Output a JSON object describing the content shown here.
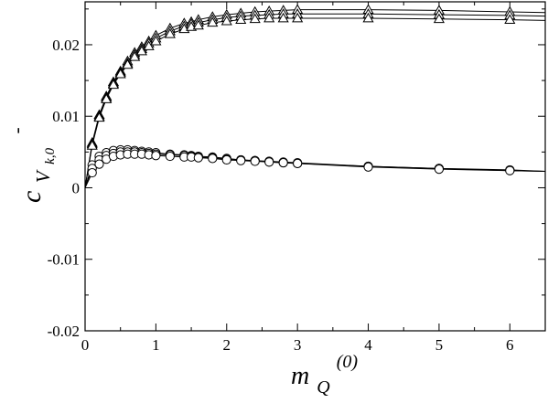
{
  "chart_data": {
    "type": "scatter",
    "title": "",
    "xlabel": {
      "base": "m",
      "sub": "Q",
      "sup": "(0)"
    },
    "ylabel": {
      "base": "c",
      "sub": "V",
      "subsub": "k,0",
      "sup": "-"
    },
    "xlim": [
      0,
      6.5
    ],
    "ylim": [
      -0.02,
      0.026
    ],
    "x_ticks": [
      0,
      1,
      2,
      3,
      4,
      5,
      6
    ],
    "x_tick_labels": [
      "0",
      "1",
      "2",
      "3",
      "4",
      "5",
      "6"
    ],
    "y_ticks": [
      -0.02,
      -0.01,
      0,
      0.01,
      0.02
    ],
    "y_tick_labels": [
      "-0.02",
      "-0.01",
      "0",
      "0.01",
      "0.02"
    ],
    "grid": false,
    "series": [
      {
        "marker": "triangle",
        "x": [
          0.1,
          0.2,
          0.3,
          0.4,
          0.5,
          0.6,
          0.7,
          0.8,
          0.9,
          1.0,
          1.2,
          1.4,
          1.5,
          1.6,
          1.8,
          2.0,
          2.2,
          2.4,
          2.6,
          2.8,
          3.0,
          4.0,
          5.0,
          6.0
        ],
        "y": [
          0.0063,
          0.0102,
          0.0128,
          0.0148,
          0.0163,
          0.0177,
          0.0189,
          0.0197,
          0.0205,
          0.0213,
          0.0223,
          0.023,
          0.0232,
          0.0235,
          0.0239,
          0.0242,
          0.0244,
          0.0246,
          0.0247,
          0.0248,
          0.0249,
          0.0249,
          0.0248,
          0.0246
        ],
        "curve_end": [
          6.5,
          0.0245
        ]
      },
      {
        "marker": "triangle",
        "x": [
          0.1,
          0.2,
          0.3,
          0.4,
          0.5,
          0.6,
          0.7,
          0.8,
          0.9,
          1.0,
          1.2,
          1.4,
          1.5,
          1.6,
          1.8,
          2.0,
          2.2,
          2.4,
          2.6,
          2.8,
          3.0,
          4.0,
          5.0,
          6.0
        ],
        "y": [
          0.0061,
          0.01,
          0.0126,
          0.0146,
          0.0161,
          0.0174,
          0.0186,
          0.0194,
          0.0202,
          0.0209,
          0.0219,
          0.0226,
          0.0229,
          0.0231,
          0.0235,
          0.0238,
          0.024,
          0.0241,
          0.0242,
          0.0243,
          0.0243,
          0.0243,
          0.0242,
          0.0241
        ],
        "curve_end": [
          6.5,
          0.024
        ]
      },
      {
        "marker": "triangle",
        "x": [
          0.1,
          0.2,
          0.3,
          0.4,
          0.5,
          0.6,
          0.7,
          0.8,
          0.9,
          1.0,
          1.2,
          1.4,
          1.5,
          1.6,
          1.8,
          2.0,
          2.2,
          2.4,
          2.6,
          2.8,
          3.0,
          4.0,
          5.0,
          6.0
        ],
        "y": [
          0.0059,
          0.0098,
          0.0124,
          0.0144,
          0.0159,
          0.0172,
          0.0183,
          0.0191,
          0.0198,
          0.0205,
          0.0215,
          0.0222,
          0.0225,
          0.0227,
          0.0231,
          0.0233,
          0.0235,
          0.0236,
          0.0237,
          0.0237,
          0.0237,
          0.0237,
          0.0236,
          0.0235
        ],
        "curve_end": [
          6.5,
          0.0234
        ]
      },
      {
        "marker": "circle",
        "x": [
          0.1,
          0.2,
          0.3,
          0.4,
          0.5,
          0.6,
          0.7,
          0.8,
          0.9,
          1.0,
          1.2,
          1.4,
          1.5,
          1.6,
          1.8,
          2.0,
          2.2,
          2.4,
          2.6,
          2.8,
          3.0,
          4.0,
          5.0,
          6.0
        ],
        "y": [
          0.0032,
          0.0044,
          0.0049,
          0.0052,
          0.0053,
          0.0053,
          0.0052,
          0.0051,
          0.005,
          0.0049,
          0.0047,
          0.0046,
          0.0045,
          0.0044,
          0.0043,
          0.0041,
          0.0039,
          0.0038,
          0.0037,
          0.0036,
          0.0035,
          0.003,
          0.0027,
          0.0025
        ],
        "curve_end": [
          6.5,
          0.0023
        ]
      },
      {
        "marker": "circle",
        "x": [
          0.1,
          0.2,
          0.3,
          0.4,
          0.5,
          0.6,
          0.7,
          0.8,
          0.9,
          1.0,
          1.2,
          1.4,
          1.5,
          1.6,
          1.8,
          2.0,
          2.2,
          2.4,
          2.6,
          2.8,
          3.0,
          4.0,
          5.0,
          6.0
        ],
        "y": [
          0.0027,
          0.0039,
          0.0045,
          0.0048,
          0.005,
          0.005,
          0.005,
          0.0049,
          0.0048,
          0.0047,
          0.0046,
          0.0045,
          0.0044,
          0.0043,
          0.0042,
          0.004,
          0.0039,
          0.0038,
          0.0036,
          0.0035,
          0.0034,
          0.003,
          0.0027,
          0.0024
        ],
        "curve_end": [
          6.5,
          0.0023
        ]
      },
      {
        "marker": "circle",
        "x": [
          0.1,
          0.2,
          0.3,
          0.4,
          0.5,
          0.6,
          0.7,
          0.8,
          0.9,
          1.0,
          1.2,
          1.4,
          1.5,
          1.6,
          1.8,
          2.0,
          2.2,
          2.4,
          2.6,
          2.8,
          3.0,
          4.0,
          5.0,
          6.0
        ],
        "y": [
          0.0021,
          0.0033,
          0.004,
          0.0044,
          0.0046,
          0.0047,
          0.0047,
          0.0047,
          0.0046,
          0.0045,
          0.0044,
          0.0043,
          0.0043,
          0.0042,
          0.0041,
          0.0039,
          0.0038,
          0.0037,
          0.0036,
          0.0035,
          0.0034,
          0.0029,
          0.0026,
          0.0024
        ],
        "curve_end": [
          6.5,
          0.0023
        ]
      }
    ]
  }
}
